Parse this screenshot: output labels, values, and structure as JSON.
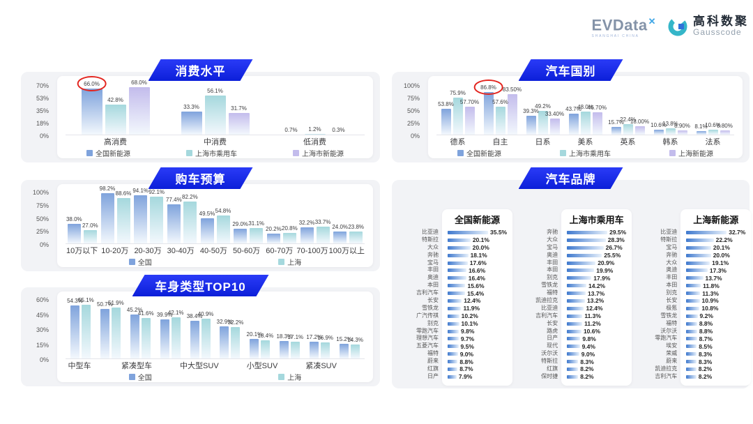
{
  "header": {
    "evdata": {
      "text": "EVData",
      "sup": "✕",
      "sub": "SHANGHAI CHINA"
    },
    "gausscode": {
      "cn": "高科数聚",
      "en": "Gausscode"
    }
  },
  "colors": {
    "banner_blue": "#1428f0",
    "series_blue": "#7fa3dc",
    "series_teal": "#a5d8dd",
    "series_purple": "#c3bcec",
    "brand_bar_blue": "#3f79ce",
    "annotation_red": "#e3251f"
  },
  "chart_data": [
    {
      "id": "consumption",
      "type": "bar",
      "title": "消费水平",
      "categories": [
        "高消费",
        "中消费",
        "低消费"
      ],
      "series": [
        {
          "name": "全国新能源",
          "color": "#7fa3dc",
          "values": [
            66.0,
            33.3,
            0.7
          ],
          "labels": [
            "66.0%",
            "33.3%",
            "0.7%"
          ]
        },
        {
          "name": "上海市乘用车",
          "color": "#a5d8dd",
          "values": [
            42.8,
            56.1,
            1.2
          ],
          "labels": [
            "42.8%",
            "56.1%",
            "1.2%"
          ]
        },
        {
          "name": "上海市新能源",
          "color": "#c3bcec",
          "values": [
            68.0,
            31.7,
            0.3
          ],
          "labels": [
            "68.0%",
            "31.7%",
            "0.3%"
          ]
        }
      ],
      "ylim": [
        0,
        70
      ],
      "yticks": [
        "0%",
        "18%",
        "35%",
        "53%",
        "70%"
      ],
      "annotation": {
        "series": 0,
        "category": 0
      }
    },
    {
      "id": "country",
      "type": "bar",
      "title": "汽车国别",
      "categories": [
        "德系",
        "自主",
        "日系",
        "美系",
        "英系",
        "韩系",
        "法系"
      ],
      "series": [
        {
          "name": "全国新能源",
          "color": "#7fa3dc",
          "values": [
            53.8,
            86.8,
            39.3,
            43.7,
            15.7,
            10.6,
            8.1
          ],
          "labels": [
            "53.8%",
            "86.8%",
            "39.3%",
            "43.7%",
            "15.7%",
            "10.6%",
            "8.1%"
          ]
        },
        {
          "name": "上海市乘用车",
          "color": "#a5d8dd",
          "values": [
            75.9,
            57.6,
            49.2,
            48.0,
            22.4,
            13.8,
            10.6
          ],
          "labels": [
            "75.9%",
            "57.6%",
            "49.2%",
            "48.0%",
            "22.4%",
            "13.8%",
            "10.6%"
          ]
        },
        {
          "name": "上海新能源",
          "color": "#c3bcec",
          "values": [
            57.7,
            83.5,
            33.4,
            46.7,
            18.0,
            8.9,
            8.8
          ],
          "labels": [
            "57.70%",
            "83.50%",
            "33.40%",
            "46.70%",
            "18.00%",
            "8.90%",
            "8.80%"
          ]
        }
      ],
      "ylim": [
        0,
        100
      ],
      "yticks": [
        "0%",
        "25%",
        "50%",
        "75%",
        "100%"
      ],
      "annotation": {
        "series": 0,
        "category": 1
      }
    },
    {
      "id": "budget",
      "type": "bar",
      "title": "购车预算",
      "categories": [
        "10万以下",
        "10-20万",
        "20-30万",
        "30-40万",
        "40-50万",
        "50-60万",
        "60-70万",
        "70-100万",
        "100万以上"
      ],
      "series": [
        {
          "name": "全国",
          "color": "#7fa3dc",
          "values": [
            38.0,
            98.2,
            94.1,
            77.4,
            49.5,
            29.0,
            20.2,
            32.2,
            24.0
          ],
          "labels": [
            "38.0%",
            "98.2%",
            "94.1%",
            "77.4%",
            "49.5%",
            "29.0%",
            "20.2%",
            "32.2%",
            "24.0%"
          ]
        },
        {
          "name": "上海",
          "color": "#a5d8dd",
          "values": [
            27.0,
            88.6,
            92.1,
            82.2,
            54.8,
            31.1,
            20.8,
            33.7,
            23.8
          ],
          "labels": [
            "27.0%",
            "88.6%",
            "92.1%",
            "82.2%",
            "54.8%",
            "31.1%",
            "20.8%",
            "33.7%",
            "23.8%"
          ]
        }
      ],
      "ylim": [
        0,
        100
      ],
      "yticks": [
        "0%",
        "25%",
        "50%",
        "75%",
        "100%"
      ]
    },
    {
      "id": "bodytype",
      "type": "bar",
      "title": "车身类型TOP10",
      "categories": [
        "中型车",
        "",
        "紧凑型车",
        "",
        "中大型SUV",
        "",
        "小型SUV",
        "",
        "紧凑SUV",
        ""
      ],
      "series": [
        {
          "name": "全国",
          "color": "#7fa3dc",
          "values": [
            54.3,
            50.7,
            45.2,
            39.9,
            38.4,
            32.9,
            20.1,
            18.3,
            17.2,
            15.2
          ],
          "labels": [
            "54.3%",
            "50.7%",
            "45.2%",
            "39.9%",
            "38.4%",
            "32.9%",
            "20.1%",
            "18.3%",
            "17.2%",
            "15.2%"
          ]
        },
        {
          "name": "上海",
          "color": "#a5d8dd",
          "values": [
            55.1,
            51.9,
            41.6,
            42.1,
            40.9,
            32.2,
            18.4,
            17.1,
            16.9,
            14.3
          ],
          "labels": [
            "55.1%",
            "51.9%",
            "41.6%",
            "42.1%",
            "40.9%",
            "32.2%",
            "18.4%",
            "17.1%",
            "16.9%",
            "14.3%"
          ]
        }
      ],
      "ylim": [
        0,
        60
      ],
      "yticks": [
        "0%",
        "15%",
        "30%",
        "45%",
        "60%"
      ]
    },
    {
      "id": "brands",
      "type": "hbar-list",
      "title": "汽车品牌",
      "lists": [
        {
          "title": "全国新能源",
          "items": [
            {
              "n": "比亚迪",
              "v": 35.5
            },
            {
              "n": "特斯拉",
              "v": 20.1
            },
            {
              "n": "大众",
              "v": 20.0
            },
            {
              "n": "奔驰",
              "v": 18.1
            },
            {
              "n": "宝马",
              "v": 17.6
            },
            {
              "n": "丰田",
              "v": 16.6
            },
            {
              "n": "奥迪",
              "v": 16.4
            },
            {
              "n": "本田",
              "v": 15.6
            },
            {
              "n": "吉利汽车",
              "v": 15.4
            },
            {
              "n": "长安",
              "v": 12.4
            },
            {
              "n": "雪铁龙",
              "v": 11.9
            },
            {
              "n": "广汽传祺",
              "v": 10.2
            },
            {
              "n": "别克",
              "v": 10.1
            },
            {
              "n": "零跑汽车",
              "v": 9.8
            },
            {
              "n": "理想汽车",
              "v": 9.7
            },
            {
              "n": "五菱汽车",
              "v": 9.5
            },
            {
              "n": "福特",
              "v": 9.0
            },
            {
              "n": "蔚来",
              "v": 8.8
            },
            {
              "n": "红旗",
              "v": 8.7
            },
            {
              "n": "日产",
              "v": 7.9
            }
          ]
        },
        {
          "title": "上海市乘用车",
          "items": [
            {
              "n": "奔驰",
              "v": 29.5
            },
            {
              "n": "大众",
              "v": 28.3
            },
            {
              "n": "宝马",
              "v": 26.7
            },
            {
              "n": "奥迪",
              "v": 25.5
            },
            {
              "n": "丰田",
              "v": 20.9
            },
            {
              "n": "本田",
              "v": 19.9
            },
            {
              "n": "别克",
              "v": 17.9
            },
            {
              "n": "雪铁龙",
              "v": 14.2
            },
            {
              "n": "福特",
              "v": 13.7
            },
            {
              "n": "凯迪拉克",
              "v": 13.2
            },
            {
              "n": "比亚迪",
              "v": 12.4
            },
            {
              "n": "吉利汽车",
              "v": 11.3
            },
            {
              "n": "长安",
              "v": 11.2
            },
            {
              "n": "路虎",
              "v": 10.6
            },
            {
              "n": "日产",
              "v": 9.8
            },
            {
              "n": "现代",
              "v": 9.4
            },
            {
              "n": "沃尔沃",
              "v": 9.0
            },
            {
              "n": "特斯拉",
              "v": 8.3
            },
            {
              "n": "红旗",
              "v": 8.2
            },
            {
              "n": "保时捷",
              "v": 8.2
            }
          ]
        },
        {
          "title": "上海新能源",
          "items": [
            {
              "n": "比亚迪",
              "v": 32.7
            },
            {
              "n": "特斯拉",
              "v": 22.2
            },
            {
              "n": "宝马",
              "v": 20.1
            },
            {
              "n": "奔驰",
              "v": 20.0
            },
            {
              "n": "大众",
              "v": 19.1
            },
            {
              "n": "奥迪",
              "v": 17.3
            },
            {
              "n": "丰田",
              "v": 13.7
            },
            {
              "n": "本田",
              "v": 11.8
            },
            {
              "n": "别克",
              "v": 11.3
            },
            {
              "n": "长安",
              "v": 10.9
            },
            {
              "n": "极氪",
              "v": 10.8
            },
            {
              "n": "雪铁龙",
              "v": 9.2
            },
            {
              "n": "福特",
              "v": 8.8
            },
            {
              "n": "沃尔沃",
              "v": 8.8
            },
            {
              "n": "零跑汽车",
              "v": 8.7
            },
            {
              "n": "埃安",
              "v": 8.5
            },
            {
              "n": "荣威",
              "v": 8.3
            },
            {
              "n": "蔚来",
              "v": 8.3
            },
            {
              "n": "凯迪拉克",
              "v": 8.2
            },
            {
              "n": "吉利汽车",
              "v": 8.2
            }
          ]
        }
      ]
    }
  ]
}
